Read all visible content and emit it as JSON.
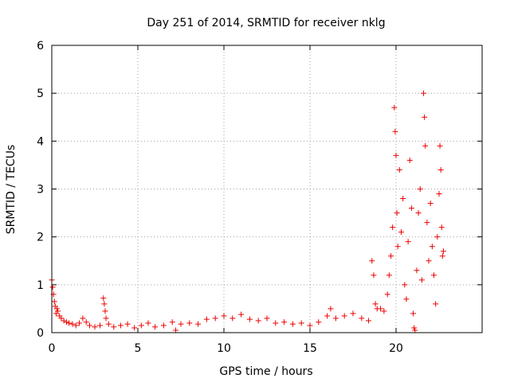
{
  "chart_data": {
    "type": "scatter",
    "title": "Day 251 of 2014, SRMTID for receiver nklg",
    "xlabel": "GPS time / hours",
    "ylabel": "SRMTID / TECUs",
    "xlim": [
      0,
      25
    ],
    "ylim": [
      0,
      6
    ],
    "xticks": [
      "0",
      "5",
      "10",
      "15",
      "20"
    ],
    "yticks": [
      "0",
      "1",
      "2",
      "3",
      "4",
      "5",
      "6"
    ],
    "grid": true,
    "series": [
      {
        "name": "SRMTID",
        "color": "#ee0000",
        "marker": "+",
        "points": [
          [
            0.0,
            1.1
          ],
          [
            0.05,
            0.95
          ],
          [
            0.1,
            0.8
          ],
          [
            0.15,
            0.65
          ],
          [
            0.2,
            0.55
          ],
          [
            0.25,
            0.4
          ],
          [
            0.3,
            0.5
          ],
          [
            0.35,
            0.45
          ],
          [
            0.45,
            0.35
          ],
          [
            0.55,
            0.3
          ],
          [
            0.7,
            0.25
          ],
          [
            0.85,
            0.22
          ],
          [
            1.0,
            0.2
          ],
          [
            1.2,
            0.18
          ],
          [
            1.4,
            0.15
          ],
          [
            1.6,
            0.2
          ],
          [
            1.8,
            0.3
          ],
          [
            2.0,
            0.22
          ],
          [
            2.2,
            0.15
          ],
          [
            2.5,
            0.12
          ],
          [
            2.8,
            0.15
          ],
          [
            3.0,
            0.72
          ],
          [
            3.05,
            0.6
          ],
          [
            3.1,
            0.45
          ],
          [
            3.15,
            0.3
          ],
          [
            3.3,
            0.18
          ],
          [
            3.6,
            0.12
          ],
          [
            4.0,
            0.15
          ],
          [
            4.4,
            0.18
          ],
          [
            4.8,
            0.1
          ],
          [
            5.2,
            0.15
          ],
          [
            5.6,
            0.2
          ],
          [
            6.0,
            0.12
          ],
          [
            6.5,
            0.15
          ],
          [
            7.0,
            0.22
          ],
          [
            7.2,
            0.05
          ],
          [
            7.5,
            0.18
          ],
          [
            8.0,
            0.2
          ],
          [
            8.5,
            0.18
          ],
          [
            9.0,
            0.28
          ],
          [
            9.5,
            0.3
          ],
          [
            10.0,
            0.35
          ],
          [
            10.5,
            0.3
          ],
          [
            11.0,
            0.38
          ],
          [
            11.5,
            0.28
          ],
          [
            12.0,
            0.25
          ],
          [
            12.5,
            0.3
          ],
          [
            13.0,
            0.2
          ],
          [
            13.5,
            0.22
          ],
          [
            14.0,
            0.18
          ],
          [
            14.5,
            0.2
          ],
          [
            15.0,
            0.15
          ],
          [
            15.5,
            0.22
          ],
          [
            16.0,
            0.35
          ],
          [
            16.2,
            0.5
          ],
          [
            16.5,
            0.3
          ],
          [
            17.0,
            0.35
          ],
          [
            17.5,
            0.4
          ],
          [
            18.0,
            0.3
          ],
          [
            18.4,
            0.25
          ],
          [
            18.6,
            1.5
          ],
          [
            18.7,
            1.2
          ],
          [
            18.8,
            0.6
          ],
          [
            18.9,
            0.5
          ],
          [
            19.1,
            0.5
          ],
          [
            19.3,
            0.45
          ],
          [
            19.5,
            0.8
          ],
          [
            19.6,
            1.2
          ],
          [
            19.7,
            1.6
          ],
          [
            19.8,
            2.2
          ],
          [
            19.9,
            4.7
          ],
          [
            19.95,
            4.2
          ],
          [
            20.0,
            3.7
          ],
          [
            20.05,
            2.5
          ],
          [
            20.1,
            1.8
          ],
          [
            20.2,
            3.4
          ],
          [
            20.3,
            2.1
          ],
          [
            20.4,
            2.8
          ],
          [
            20.5,
            1.0
          ],
          [
            20.6,
            0.7
          ],
          [
            20.7,
            1.9
          ],
          [
            20.8,
            3.6
          ],
          [
            20.9,
            2.6
          ],
          [
            21.0,
            0.4
          ],
          [
            21.05,
            0.1
          ],
          [
            21.1,
            0.05
          ],
          [
            21.2,
            1.3
          ],
          [
            21.3,
            2.5
          ],
          [
            21.4,
            3.0
          ],
          [
            21.5,
            1.1
          ],
          [
            21.6,
            5.0
          ],
          [
            21.65,
            4.5
          ],
          [
            21.7,
            3.9
          ],
          [
            21.8,
            2.3
          ],
          [
            21.9,
            1.5
          ],
          [
            22.0,
            2.7
          ],
          [
            22.1,
            1.8
          ],
          [
            22.2,
            1.2
          ],
          [
            22.3,
            0.6
          ],
          [
            22.4,
            2.0
          ],
          [
            22.5,
            2.9
          ],
          [
            22.55,
            3.9
          ],
          [
            22.6,
            3.4
          ],
          [
            22.65,
            2.2
          ],
          [
            22.7,
            1.6
          ],
          [
            22.75,
            1.7
          ]
        ]
      }
    ]
  }
}
